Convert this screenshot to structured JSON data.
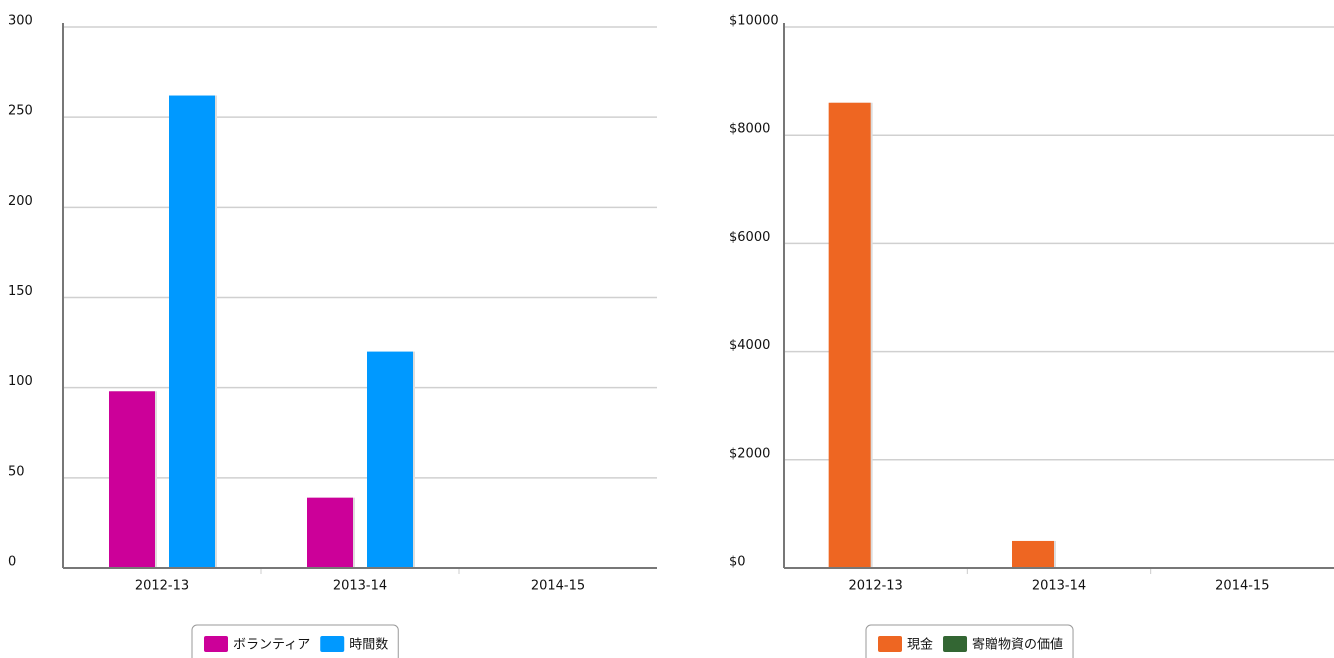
{
  "chart_data": [
    {
      "type": "bar",
      "categories": [
        "2012-13",
        "2013-14",
        "2014-15"
      ],
      "series": [
        {
          "name": "ボランティア",
          "color": "#cc0099",
          "values": [
            98,
            39,
            0
          ]
        },
        {
          "name": "時間数",
          "color": "#0099ff",
          "values": [
            262,
            120,
            0
          ]
        }
      ],
      "ylim": [
        0,
        300
      ],
      "yticks": [
        0,
        50,
        100,
        150,
        200,
        250,
        300
      ],
      "grid": true,
      "legend": "bottom"
    },
    {
      "type": "bar",
      "categories": [
        "2012-13",
        "2013-14",
        "2014-15"
      ],
      "series": [
        {
          "name": "現金",
          "color": "#ee6622",
          "values": [
            8600,
            500,
            0
          ]
        },
        {
          "name": "寄贈物資の価値",
          "color": "#336633",
          "values": [
            0,
            0,
            0
          ]
        }
      ],
      "ylim": [
        0,
        10000
      ],
      "yticks": [
        {
          "value": 0,
          "label": "$0"
        },
        {
          "value": 2000,
          "label": "$2000"
        },
        {
          "value": 4000,
          "label": "$4000"
        },
        {
          "value": 6000,
          "label": "$6000"
        },
        {
          "value": 8000,
          "label": "$8000"
        },
        {
          "value": 10000,
          "label": "$10000"
        }
      ],
      "grid": true,
      "legend": "bottom"
    }
  ]
}
